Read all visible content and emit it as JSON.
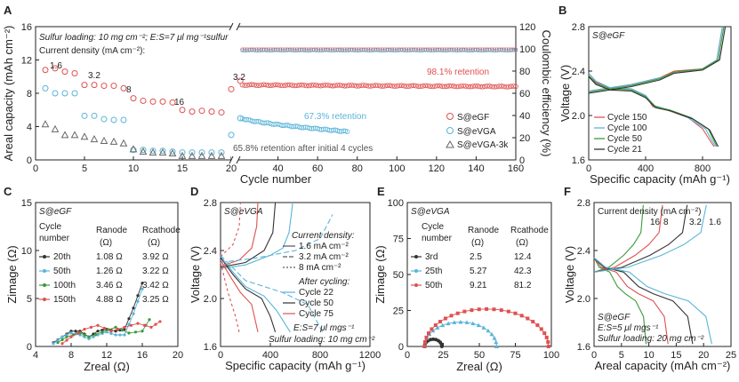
{
  "panels": {
    "A": {
      "label": "A",
      "loading_note": "Sulfur loading: 10 mg cm⁻²; E:S=7 μl mg⁻¹sulfur",
      "density_label": "Current density (mA cm⁻²):",
      "densities": [
        "1.6",
        "3.2",
        "8",
        "16",
        "3.2"
      ],
      "retention_eGF": "98.1% retention",
      "retention_eVGA": "67.3% retention",
      "retention_3k": "65.8% retention after initial 4 cycles",
      "legend": [
        "S@eGF",
        "S@eVGA",
        "S@eVGA-3k"
      ],
      "colors": {
        "eGF": "#e05050",
        "eVGA": "#5ab4d8",
        "k3": "#666666"
      }
    },
    "B": {
      "label": "B",
      "title": "S@eGF",
      "legend": [
        "Cycle 150",
        "Cycle 100",
        "Cycle 50",
        "Cycle 21"
      ],
      "colors": [
        "#e05050",
        "#5ab4d8",
        "#3a9a3a",
        "#333333"
      ]
    },
    "C": {
      "label": "C",
      "title": "S@eGF",
      "header": {
        "cycle": "Cycle",
        "number": "number",
        "ranode": "Ranode",
        "rcathode": "Rcathode",
        "unit": "(Ω)"
      },
      "rows": [
        {
          "cycle": "20th",
          "ra": "1.08 Ω",
          "rc": "3.92 Ω"
        },
        {
          "cycle": "50th",
          "ra": "1.26 Ω",
          "rc": "3.22 Ω"
        },
        {
          "cycle": "100th",
          "ra": "3.46 Ω",
          "rc": "3.42 Ω"
        },
        {
          "cycle": "150th",
          "ra": "4.88 Ω",
          "rc": "3.25 Ω"
        }
      ],
      "colors": [
        "#333333",
        "#5ab4d8",
        "#3a9a3a",
        "#e05050"
      ]
    },
    "D": {
      "label": "D",
      "title": "S@eVGA",
      "density_title": "Current density:",
      "densities": [
        "1.6 mA cm⁻²",
        "3.2 mA cm⁻²",
        "8 mA cm⁻²"
      ],
      "after_title": "After cycling:",
      "cycles": [
        "Cycle 22",
        "Cycle 50",
        "Cycle 75"
      ],
      "note1": "E:S=7 μl mgs⁻¹",
      "note2": "Sulfur loading: 10 mg cm⁻²"
    },
    "E": {
      "label": "E",
      "title": "S@eVGA",
      "header": {
        "cycle": "Cycle",
        "number": "number",
        "ranode": "Ranode",
        "rcathode": "Rcathode",
        "unit": "(Ω)"
      },
      "rows": [
        {
          "cycle": "3rd",
          "ra": "2.5",
          "rc": "12.4"
        },
        {
          "cycle": "25th",
          "ra": "5.27",
          "rc": "42.3"
        },
        {
          "cycle": "50th",
          "ra": "9.21",
          "rc": "81.2"
        }
      ],
      "colors": [
        "#333333",
        "#5ab4d8",
        "#e05050"
      ]
    },
    "F": {
      "label": "F",
      "density_title": "Current density (mA cm⁻²)",
      "densities": [
        "16",
        "8",
        "3.2",
        "1.6"
      ],
      "title": "S@eGF",
      "note1": "E:S=5 μl mgs⁻¹",
      "note2": "Sulfur loading: 20 mg cm⁻²"
    }
  },
  "chart_data": [
    {
      "panel": "A",
      "type": "scatter",
      "xlabel": "Cycle number",
      "ylabel": "Areal capacity (mAh cm⁻²)",
      "y2label": "Coulombic efficiency (%)",
      "xlim": [
        0,
        160
      ],
      "ylim": [
        0,
        16
      ],
      "y2lim": [
        0,
        120
      ],
      "xticks": [
        0,
        5,
        10,
        15,
        20,
        40,
        60,
        80,
        100,
        120,
        140,
        160
      ],
      "yticks": [
        0,
        4,
        8,
        12,
        16
      ],
      "y2ticks": [
        0,
        20,
        40,
        60,
        80,
        100,
        120
      ],
      "series": [
        {
          "name": "S@eGF",
          "x": [
            1,
            2,
            3,
            4,
            5,
            6,
            7,
            8,
            9,
            10,
            11,
            12,
            13,
            14,
            15,
            16,
            17,
            18,
            19,
            20,
            21
          ],
          "values": [
            10.8,
            11.0,
            10.6,
            10.4,
            9.0,
            9.0,
            8.9,
            8.9,
            8.6,
            7.4,
            7.1,
            7.0,
            7.0,
            6.9,
            6.0,
            5.8,
            5.9,
            5.8,
            5.7,
            8.5,
            9.5
          ]
        },
        {
          "name": "S@eVGA",
          "x": [
            1,
            2,
            3,
            4,
            5,
            6,
            7,
            8,
            9,
            10,
            11,
            12,
            13,
            14,
            15,
            16,
            17,
            18,
            19,
            20,
            21
          ],
          "values": [
            8.6,
            8.0,
            8.0,
            8.0,
            5.3,
            5.3,
            4.9,
            4.8,
            4.8,
            1.2,
            1.2,
            1.1,
            1.1,
            1.0,
            0.9,
            0.9,
            0.9,
            0.9,
            0.9,
            3.0,
            5.0
          ]
        },
        {
          "name": "S@eVGA-3k",
          "x": [
            1,
            2,
            3,
            4,
            5,
            6,
            7,
            8,
            9,
            10,
            11,
            12,
            13,
            14,
            15,
            16,
            17,
            18,
            19
          ],
          "values": [
            4.3,
            3.7,
            3.0,
            3.0,
            2.8,
            2.5,
            2.3,
            2.2,
            2.0,
            1.3,
            1.0,
            0.9,
            0.9,
            0.8,
            0.5,
            0.5,
            0.5,
            0.5,
            0.5
          ]
        }
      ],
      "eGF_long": {
        "x0": 22,
        "x1": 160,
        "start": 9.0,
        "end": 8.8
      },
      "eVGA_long": {
        "x0": 22,
        "x1": 75,
        "start": 5.0,
        "end": 3.4
      },
      "ce": {
        "x0": 22,
        "x1": 160,
        "eGF": 99.5,
        "eVGA": 98.5
      }
    },
    {
      "panel": "B",
      "type": "line",
      "xlabel": "Specific capacity (mAh g⁻¹)",
      "ylabel": "Voltage (V)",
      "xlim": [
        0,
        1000
      ],
      "ylim": [
        1.6,
        2.8
      ],
      "xticks": [
        0,
        400,
        800
      ],
      "yticks": [
        1.6,
        2.0,
        2.4,
        2.8
      ],
      "series": [
        {
          "name": "Cycle 150",
          "charge": [
            [
              0,
              2.22
            ],
            [
              100,
              2.24
            ],
            [
              300,
              2.28
            ],
            [
              500,
              2.34
            ],
            [
              600,
              2.4
            ],
            [
              800,
              2.42
            ],
            [
              900,
              2.5
            ],
            [
              940,
              2.8
            ]
          ],
          "discharge": [
            [
              0,
              2.36
            ],
            [
              50,
              2.3
            ],
            [
              150,
              2.25
            ],
            [
              300,
              2.24
            ],
            [
              400,
              2.18
            ],
            [
              450,
              2.08
            ],
            [
              550,
              2.05
            ],
            [
              700,
              1.98
            ],
            [
              800,
              1.88
            ],
            [
              880,
              1.72
            ]
          ]
        },
        {
          "name": "Cycle 100",
          "charge": [
            [
              0,
              2.22
            ],
            [
              100,
              2.24
            ],
            [
              300,
              2.28
            ],
            [
              500,
              2.34
            ],
            [
              600,
              2.38
            ],
            [
              800,
              2.42
            ],
            [
              900,
              2.5
            ],
            [
              940,
              2.8
            ]
          ],
          "discharge": [
            [
              0,
              2.38
            ],
            [
              50,
              2.31
            ],
            [
              150,
              2.25
            ],
            [
              300,
              2.24
            ],
            [
              400,
              2.18
            ],
            [
              460,
              2.09
            ],
            [
              560,
              2.05
            ],
            [
              700,
              1.98
            ],
            [
              820,
              1.88
            ],
            [
              890,
              1.72
            ]
          ]
        },
        {
          "name": "Cycle 50",
          "charge": [
            [
              0,
              2.21
            ],
            [
              100,
              2.23
            ],
            [
              300,
              2.27
            ],
            [
              500,
              2.33
            ],
            [
              600,
              2.39
            ],
            [
              800,
              2.42
            ],
            [
              910,
              2.5
            ],
            [
              950,
              2.8
            ]
          ],
          "discharge": [
            [
              0,
              2.36
            ],
            [
              50,
              2.29
            ],
            [
              150,
              2.24
            ],
            [
              300,
              2.23
            ],
            [
              400,
              2.17
            ],
            [
              470,
              2.08
            ],
            [
              570,
              2.05
            ],
            [
              720,
              1.98
            ],
            [
              840,
              1.88
            ],
            [
              900,
              1.72
            ]
          ]
        },
        {
          "name": "Cycle 21",
          "charge": [
            [
              0,
              2.2
            ],
            [
              100,
              2.22
            ],
            [
              300,
              2.26
            ],
            [
              500,
              2.32
            ],
            [
              600,
              2.38
            ],
            [
              800,
              2.41
            ],
            [
              920,
              2.5
            ],
            [
              960,
              2.8
            ]
          ],
          "discharge": [
            [
              0,
              2.35
            ],
            [
              50,
              2.28
            ],
            [
              150,
              2.23
            ],
            [
              300,
              2.22
            ],
            [
              400,
              2.16
            ],
            [
              470,
              2.07
            ],
            [
              580,
              2.04
            ],
            [
              730,
              1.97
            ],
            [
              850,
              1.87
            ],
            [
              910,
              1.72
            ]
          ]
        }
      ]
    },
    {
      "panel": "C",
      "type": "scatter",
      "xlabel": "Zreal (Ω)",
      "ylabel": "Zimage (Ω)",
      "xlim": [
        4,
        20
      ],
      "ylim": [
        0,
        15
      ],
      "xticks": [
        4,
        8,
        12,
        16,
        20
      ],
      "yticks": [
        0,
        5,
        10,
        15
      ]
    },
    {
      "panel": "D",
      "type": "line",
      "xlabel": "Specific capacity (mAh g⁻¹)",
      "ylabel": "Voltage (V)",
      "xlim": [
        0,
        1200
      ],
      "ylim": [
        1.6,
        2.8
      ],
      "xticks": [
        0,
        400,
        800,
        1200
      ],
      "yticks": [
        1.6,
        2.0,
        2.4,
        2.8
      ]
    },
    {
      "panel": "E",
      "type": "scatter",
      "xlabel": "Zreal (Ω)",
      "ylabel": "Zimage (Ω)",
      "xlim": [
        0,
        100
      ],
      "ylim": [
        0,
        100
      ],
      "xticks": [
        0,
        25,
        50,
        75,
        100
      ],
      "yticks": [
        0,
        25,
        50,
        75,
        100
      ]
    },
    {
      "panel": "F",
      "type": "line",
      "xlabel": "Areal capacity (mAh cm⁻²)",
      "ylabel": "Voltage (V)",
      "xlim": [
        0,
        25
      ],
      "ylim": [
        1.6,
        2.8
      ],
      "xticks": [
        0,
        5,
        10,
        15,
        20,
        25
      ],
      "yticks": [
        1.6,
        2.0,
        2.4,
        2.8
      ],
      "series": [
        {
          "name": "16",
          "color": "#3a9a3a",
          "discharge_end": 9.5,
          "charge_end": 9.0
        },
        {
          "name": "8",
          "color": "#e05050",
          "discharge_end": 13.5,
          "charge_end": 12.5
        },
        {
          "name": "3.2",
          "color": "#333333",
          "discharge_end": 18.0,
          "charge_end": 17.0
        },
        {
          "name": "1.6",
          "color": "#5ab4d8",
          "discharge_end": 21.5,
          "charge_end": 20.5
        }
      ]
    }
  ]
}
